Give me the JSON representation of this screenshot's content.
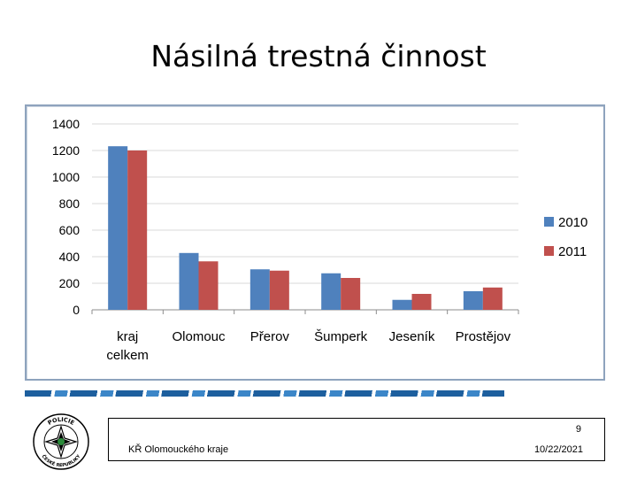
{
  "slide": {
    "title": "Násilná trestná činnost",
    "footer_org": "KŘ Olomouckého kraje",
    "page_number": "9",
    "date": "10/22/2021",
    "logo_text_top": "POLICIE",
    "logo_text_bottom": "ČESKÉ REPUBLIKY"
  },
  "colors": {
    "series_2010": "#4f81bd",
    "series_2011": "#c0504d",
    "grid": "#d9d9d9",
    "frame": "#8ea3bd"
  },
  "chart_data": {
    "type": "bar",
    "categories": [
      "kraj celkem",
      "Olomouc",
      "Přerov",
      "Šumperk",
      "Jeseník",
      "Prostějov"
    ],
    "series": [
      {
        "name": "2010",
        "values": [
          1232,
          428,
          305,
          275,
          75,
          140
        ]
      },
      {
        "name": "2011",
        "values": [
          1200,
          365,
          295,
          240,
          120,
          168
        ]
      }
    ],
    "yticks": [
      0,
      200,
      400,
      600,
      800,
      1000,
      1200,
      1400
    ],
    "ylim": [
      0,
      1400
    ],
    "grid": true,
    "legend_position": "right"
  }
}
